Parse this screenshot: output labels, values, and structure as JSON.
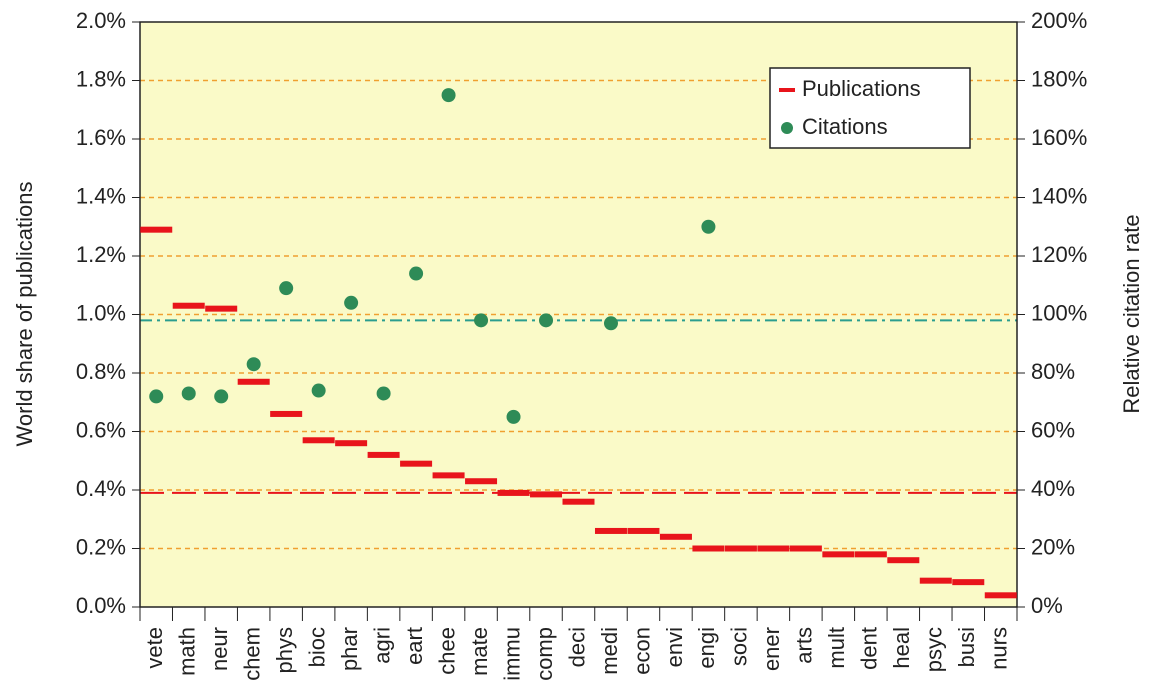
{
  "chart_data": {
    "type": "dot",
    "ylabel": "World share of publications",
    "y2label": "Relative citation rate",
    "categories": [
      "vete",
      "math",
      "neur",
      "chem",
      "phys",
      "bioc",
      "phar",
      "agri",
      "eart",
      "chee",
      "mate",
      "immu",
      "comp",
      "deci",
      "medi",
      "econ",
      "envi",
      "engi",
      "soci",
      "ener",
      "arts",
      "mult",
      "dent",
      "heal",
      "psyc",
      "busi",
      "nurs"
    ],
    "series": [
      {
        "name": "Publications",
        "color": "#e8141b",
        "marker": "dash",
        "values": [
          1.29,
          1.03,
          1.02,
          0.77,
          0.66,
          0.57,
          0.56,
          0.52,
          0.49,
          0.45,
          0.43,
          0.39,
          0.385,
          0.36,
          0.26,
          0.26,
          0.24,
          0.2,
          0.2,
          0.2,
          0.2,
          0.18,
          0.18,
          0.16,
          0.09,
          0.085,
          0.04
        ]
      },
      {
        "name": "Citations",
        "color": "#2e8b57",
        "marker": "circle",
        "axis": "y2",
        "values": [
          72,
          73,
          72,
          83,
          109,
          74,
          104,
          73,
          114,
          175,
          98,
          65,
          98,
          null,
          97,
          null,
          null,
          130,
          null,
          null,
          null,
          null,
          null,
          null,
          null,
          null,
          null
        ]
      }
    ],
    "hlines": [
      {
        "value": 0.39,
        "color": "#e8141b",
        "style": "dashed"
      },
      {
        "value": 98,
        "axis": "y2",
        "color": "#2a9d8f",
        "style": "dashdot"
      }
    ],
    "ylim": [
      0,
      2.0
    ],
    "yticks": [
      {
        "value": 0,
        "label": "0.0%"
      },
      {
        "value": 0.2,
        "label": "0.2%"
      },
      {
        "value": 0.4,
        "label": "0.4%"
      },
      {
        "value": 0.6,
        "label": "0.6%"
      },
      {
        "value": 0.8,
        "label": "0.8%"
      },
      {
        "value": 1.0,
        "label": "1.0%"
      },
      {
        "value": 1.2,
        "label": "1.2%"
      },
      {
        "value": 1.4,
        "label": "1.4%"
      },
      {
        "value": 1.6,
        "label": "1.6%"
      },
      {
        "value": 1.8,
        "label": "1.8%"
      },
      {
        "value": 2.0,
        "label": "2.0%"
      }
    ],
    "y2lim": [
      0,
      200
    ],
    "y2ticks": [
      {
        "value": 0,
        "label": "0%"
      },
      {
        "value": 20,
        "label": "20%"
      },
      {
        "value": 40,
        "label": "40%"
      },
      {
        "value": 60,
        "label": "60%"
      },
      {
        "value": 80,
        "label": "80%"
      },
      {
        "value": 100,
        "label": "100%"
      },
      {
        "value": 120,
        "label": "120%"
      },
      {
        "value": 140,
        "label": "140%"
      },
      {
        "value": 160,
        "label": "160%"
      },
      {
        "value": 180,
        "label": "180%"
      },
      {
        "value": 200,
        "label": "200%"
      }
    ],
    "grid": true,
    "grid_color": "#f0a030",
    "background": "#fafac8",
    "legend": "upper right"
  }
}
